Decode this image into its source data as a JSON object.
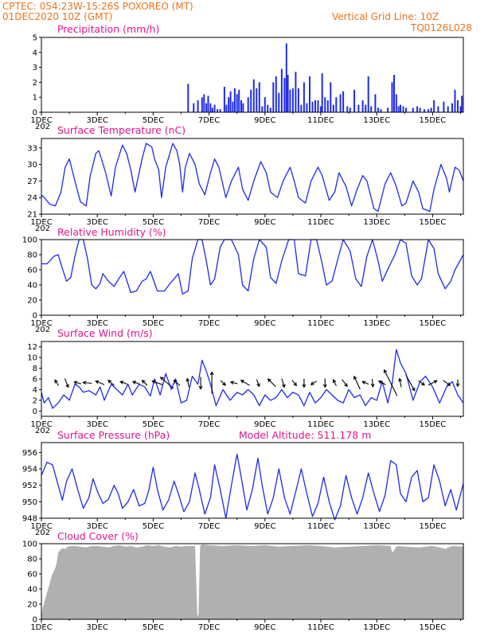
{
  "header": {
    "line1": "CPTEC:   054:23W-15:26S   POXOREO (MT)",
    "line2": "01DEC2020 10Z (GMT)",
    "grid_label": "Vertical Grid Line: 10Z",
    "code": "TQ0126L028"
  },
  "colors": {
    "header": "#e8741c",
    "title": "#e0158c",
    "series": "#1f2bea",
    "arrow": "#000000",
    "cloud": "#b0b0b0"
  },
  "x_axis": {
    "labels": [
      "1DEC",
      "3DEC",
      "5DEC",
      "7DEC",
      "9DEC",
      "11DEC",
      "13DEC",
      "15DEC"
    ],
    "label_days": [
      1,
      3,
      5,
      7,
      9,
      11,
      13,
      15
    ],
    "year_stub": "202",
    "range_days": [
      1,
      16.1
    ]
  },
  "chart_data": [
    {
      "id": "precip",
      "type": "bar",
      "title": "Precipitation (mm/h)",
      "ylim": [
        0,
        5
      ],
      "yticks": [
        0,
        1,
        2,
        3,
        4,
        5
      ],
      "x": [
        6.25,
        6.45,
        6.6,
        6.75,
        6.82,
        6.9,
        6.97,
        7.05,
        7.12,
        7.2,
        7.3,
        7.4,
        7.55,
        7.62,
        7.7,
        7.77,
        7.85,
        7.92,
        8.0,
        8.07,
        8.15,
        8.22,
        8.4,
        8.5,
        8.6,
        8.7,
        8.8,
        8.9,
        9.0,
        9.1,
        9.2,
        9.3,
        9.4,
        9.5,
        9.6,
        9.7,
        9.77,
        9.82,
        9.9,
        10.0,
        10.1,
        10.2,
        10.3,
        10.4,
        10.5,
        10.6,
        10.7,
        10.8,
        10.9,
        11.0,
        11.05,
        11.15,
        11.25,
        11.35,
        11.45,
        11.55,
        11.7,
        11.8,
        11.95,
        12.05,
        12.2,
        12.35,
        12.5,
        12.6,
        12.7,
        12.8,
        12.95,
        13.05,
        13.15,
        13.4,
        13.55,
        13.62,
        13.7,
        13.78,
        13.85,
        13.95,
        14.05,
        14.3,
        14.45,
        14.55,
        14.7,
        14.85,
        14.95,
        15.05,
        15.2,
        15.4,
        15.55,
        15.7,
        15.8,
        15.9,
        16.0,
        16.05
      ],
      "values": [
        1.9,
        0.6,
        0.8,
        1.0,
        1.2,
        0.6,
        1.1,
        0.6,
        0.3,
        0.5,
        0.2,
        0.2,
        1.7,
        0.5,
        1.0,
        1.4,
        0.7,
        1.6,
        1.2,
        1.5,
        0.8,
        0.6,
        1.0,
        1.5,
        2.2,
        1.6,
        2.0,
        0.4,
        1.0,
        0.5,
        0.3,
        2.0,
        2.4,
        1.3,
        2.9,
        2.3,
        4.6,
        2.5,
        1.5,
        1.6,
        2.7,
        1.6,
        0.5,
        2.0,
        0.6,
        2.4,
        0.7,
        0.8,
        0.8,
        0.4,
        2.6,
        1.0,
        0.8,
        2.0,
        0.5,
        1.0,
        1.2,
        1.4,
        0.4,
        0.3,
        1.5,
        0.5,
        0.8,
        0.5,
        2.4,
        0.4,
        1.2,
        0.3,
        0.2,
        0.3,
        2.0,
        2.5,
        1.2,
        0.4,
        0.5,
        0.4,
        0.3,
        0.3,
        0.4,
        0.3,
        0.2,
        0.2,
        0.3,
        0.8,
        0.4,
        0.7,
        0.4,
        0.6,
        1.5,
        0.8,
        0.4,
        1.1
      ]
    },
    {
      "id": "temp",
      "type": "line",
      "title": "Surface Temperature (nC)",
      "ylim": [
        21,
        34.7
      ],
      "yticks": [
        21,
        24,
        27,
        30,
        33
      ],
      "x": [
        1.0,
        1.1,
        1.3,
        1.5,
        1.7,
        1.85,
        2.0,
        2.2,
        2.4,
        2.6,
        2.75,
        2.95,
        3.05,
        3.15,
        3.3,
        3.5,
        3.65,
        3.9,
        4.05,
        4.2,
        4.35,
        4.6,
        4.75,
        4.95,
        5.05,
        5.2,
        5.3,
        5.45,
        5.7,
        5.85,
        5.95,
        6.05,
        6.15,
        6.3,
        6.5,
        6.65,
        6.85,
        7.05,
        7.2,
        7.35,
        7.6,
        7.8,
        8.05,
        8.2,
        8.4,
        8.6,
        8.85,
        9.05,
        9.2,
        9.45,
        9.65,
        9.9,
        10.05,
        10.2,
        10.45,
        10.65,
        10.9,
        11.05,
        11.3,
        11.5,
        11.65,
        11.9,
        12.1,
        12.3,
        12.5,
        12.65,
        12.9,
        13.05,
        13.3,
        13.5,
        13.7,
        13.9,
        14.05,
        14.3,
        14.5,
        14.65,
        14.9,
        15.05,
        15.3,
        15.5,
        15.6,
        15.8,
        15.95,
        16.1
      ],
      "values": [
        24.5,
        24.0,
        22.8,
        22.5,
        25.0,
        29.5,
        31.0,
        27.0,
        23.2,
        22.5,
        28.0,
        32.0,
        32.5,
        31.0,
        28.5,
        24.3,
        29.5,
        33.5,
        32.0,
        29.0,
        25.0,
        31.0,
        33.8,
        33.2,
        31.0,
        29.0,
        24.0,
        29.5,
        33.8,
        32.5,
        30.0,
        25.0,
        29.5,
        32.0,
        30.0,
        26.5,
        24.5,
        28.5,
        31.0,
        29.5,
        24.0,
        27.0,
        29.5,
        25.5,
        23.5,
        27.0,
        30.5,
        28.5,
        25.0,
        24.0,
        27.0,
        29.5,
        27.0,
        24.0,
        23.0,
        27.0,
        29.5,
        28.0,
        23.5,
        25.0,
        28.5,
        26.0,
        22.5,
        25.5,
        28.0,
        27.0,
        22.0,
        21.5,
        26.5,
        28.5,
        26.0,
        22.5,
        23.0,
        27.0,
        25.0,
        22.0,
        21.5,
        25.5,
        30.0,
        27.5,
        25.0,
        29.5,
        29.0,
        27.0
      ]
    },
    {
      "id": "rh",
      "type": "line",
      "title": "Relative Humidity (%)",
      "ylim": [
        0,
        100
      ],
      "yticks": [
        0,
        20,
        40,
        60,
        80,
        100
      ],
      "x": [
        1.0,
        1.2,
        1.45,
        1.6,
        1.75,
        1.9,
        2.05,
        2.2,
        2.35,
        2.5,
        2.65,
        2.8,
        2.95,
        3.1,
        3.2,
        3.4,
        3.6,
        3.8,
        3.95,
        4.2,
        4.4,
        4.6,
        4.75,
        4.9,
        5.15,
        5.4,
        5.6,
        5.75,
        5.9,
        6.05,
        6.25,
        6.4,
        6.6,
        6.75,
        6.9,
        7.05,
        7.2,
        7.4,
        7.55,
        7.8,
        8.05,
        8.2,
        8.4,
        8.6,
        8.8,
        9.05,
        9.2,
        9.4,
        9.6,
        9.85,
        10.05,
        10.2,
        10.45,
        10.65,
        10.85,
        11.05,
        11.2,
        11.4,
        11.65,
        11.8,
        12.05,
        12.25,
        12.45,
        12.65,
        12.85,
        13.05,
        13.2,
        13.45,
        13.65,
        13.85,
        14.05,
        14.25,
        14.45,
        14.6,
        14.85,
        15.05,
        15.2,
        15.45,
        15.65,
        15.8,
        16.1
      ],
      "values": [
        68,
        68,
        78,
        80,
        62,
        45,
        50,
        78,
        100,
        100,
        75,
        40,
        35,
        42,
        55,
        45,
        38,
        50,
        58,
        30,
        32,
        45,
        48,
        58,
        32,
        32,
        42,
        48,
        55,
        28,
        32,
        75,
        100,
        100,
        72,
        40,
        48,
        90,
        100,
        100,
        80,
        40,
        32,
        75,
        100,
        90,
        50,
        42,
        72,
        100,
        100,
        55,
        52,
        100,
        100,
        68,
        40,
        45,
        80,
        100,
        85,
        48,
        38,
        78,
        100,
        72,
        45,
        65,
        80,
        100,
        95,
        52,
        40,
        48,
        100,
        88,
        55,
        35,
        45,
        60,
        80
      ]
    },
    {
      "id": "wind",
      "type": "line",
      "title": "Surface Wind (m/s)",
      "ylim": [
        -1,
        13
      ],
      "yticks": [
        0,
        2,
        4,
        6,
        8,
        10,
        12
      ],
      "x": [
        1.0,
        1.1,
        1.25,
        1.4,
        1.6,
        1.8,
        2.0,
        2.2,
        2.35,
        2.5,
        2.7,
        2.95,
        3.1,
        3.25,
        3.5,
        3.7,
        3.9,
        4.1,
        4.25,
        4.5,
        4.7,
        4.9,
        5.05,
        5.25,
        5.45,
        5.65,
        5.8,
        6.0,
        6.2,
        6.4,
        6.6,
        6.75,
        6.9,
        7.05,
        7.25,
        7.5,
        7.75,
        8.0,
        8.2,
        8.4,
        8.6,
        8.8,
        9.0,
        9.2,
        9.4,
        9.6,
        9.8,
        10.0,
        10.2,
        10.4,
        10.6,
        10.8,
        11.0,
        11.2,
        11.4,
        11.6,
        11.8,
        12.0,
        12.2,
        12.4,
        12.6,
        12.8,
        13.0,
        13.2,
        13.4,
        13.55,
        13.7,
        13.85,
        14.05,
        14.3,
        14.55,
        14.75,
        15.0,
        15.25,
        15.5,
        15.7,
        15.9,
        16.1
      ],
      "values": [
        3.5,
        1.5,
        2.5,
        0.5,
        1.5,
        3.0,
        2.0,
        5.0,
        4.5,
        3.5,
        3.8,
        3.0,
        4.5,
        2.0,
        5.0,
        4.0,
        3.0,
        5.0,
        3.0,
        5.0,
        4.5,
        2.8,
        6.0,
        3.0,
        7.0,
        4.0,
        6.0,
        1.5,
        2.0,
        6.5,
        5.0,
        9.5,
        7.5,
        5.0,
        1.0,
        4.0,
        2.0,
        3.5,
        3.0,
        4.0,
        3.0,
        1.0,
        3.0,
        2.0,
        2.5,
        4.0,
        2.5,
        3.5,
        3.0,
        1.0,
        3.5,
        1.5,
        2.5,
        4.0,
        3.0,
        2.0,
        1.5,
        4.0,
        2.5,
        3.0,
        1.0,
        2.5,
        2.0,
        5.5,
        1.5,
        5.0,
        11.5,
        9.0,
        7.0,
        2.0,
        5.5,
        6.5,
        4.5,
        1.5,
        4.5,
        5.5,
        3.0,
        1.5
      ],
      "arrows_x": [
        1.55,
        1.9,
        2.3,
        2.65,
        3.1,
        3.5,
        3.95,
        4.4,
        4.7,
        5.15,
        5.5,
        5.85,
        6.25,
        6.7,
        7.1,
        7.5,
        7.9,
        8.3,
        8.75,
        9.25,
        9.65,
        10.05,
        10.4,
        10.75,
        11.15,
        11.5,
        11.85,
        12.3,
        12.6,
        12.85,
        13.2,
        13.5,
        13.85,
        14.2,
        14.6,
        15.0,
        15.5,
        15.9
      ],
      "arrows_u": [
        -0.4,
        0.4,
        -0.8,
        -1.0,
        -1.0,
        -0.7,
        -0.8,
        -0.8,
        -0.6,
        -1.2,
        -1.5,
        -0.7,
        -0.2,
        0.0,
        0.0,
        0.5,
        -0.8,
        -1.0,
        0.3,
        -0.9,
        0.3,
        0.4,
        0.0,
        -0.5,
        0.0,
        -0.3,
        0.6,
        -0.7,
        -0.5,
        0.1,
        -0.8,
        -1.5,
        -0.2,
        1.0,
        0.7,
        1.0,
        0.8,
        0.0
      ],
      "arrows_v": [
        0.6,
        -1.0,
        0.2,
        0.1,
        0.4,
        0.6,
        0.3,
        0.3,
        0.6,
        0.4,
        1.3,
        0.6,
        1.0,
        -1.4,
        2.5,
        -0.5,
        0.2,
        0.6,
        -0.8,
        0.9,
        -1.0,
        -0.5,
        -1.0,
        -0.3,
        -1.0,
        0.6,
        -0.8,
        1.5,
        0.2,
        -0.9,
        0.4,
        3.0,
        1.0,
        -1.8,
        -0.5,
        0.5,
        -0.6,
        -0.8
      ]
    },
    {
      "id": "pressure",
      "type": "line",
      "title": "Surface Pressure (hPa)",
      "annotation": "Model Altitude: 511.178  m",
      "ylim": [
        948,
        957.2
      ],
      "yticks": [
        948,
        950,
        952,
        954,
        956
      ],
      "x": [
        1.0,
        1.2,
        1.4,
        1.6,
        1.75,
        1.9,
        2.1,
        2.3,
        2.5,
        2.7,
        2.85,
        3.0,
        3.2,
        3.4,
        3.6,
        3.75,
        3.9,
        4.1,
        4.3,
        4.5,
        4.7,
        4.85,
        5.0,
        5.15,
        5.35,
        5.55,
        5.75,
        5.9,
        6.1,
        6.3,
        6.5,
        6.65,
        6.85,
        7.05,
        7.2,
        7.4,
        7.6,
        7.8,
        8.0,
        8.15,
        8.35,
        8.55,
        8.75,
        8.9,
        9.1,
        9.3,
        9.5,
        9.7,
        9.9,
        10.1,
        10.3,
        10.5,
        10.7,
        10.9,
        11.1,
        11.3,
        11.5,
        11.7,
        11.9,
        12.1,
        12.3,
        12.5,
        12.7,
        12.9,
        13.1,
        13.3,
        13.5,
        13.7,
        13.85,
        14.05,
        14.25,
        14.45,
        14.65,
        14.85,
        15.05,
        15.25,
        15.45,
        15.65,
        15.85,
        16.1
      ],
      "values": [
        953.2,
        954.8,
        954.5,
        952.0,
        950.2,
        952.5,
        954.0,
        951.5,
        949.2,
        950.5,
        952.8,
        951.3,
        949.8,
        950.3,
        952.0,
        951.0,
        949.2,
        950.0,
        951.5,
        949.5,
        949.8,
        951.5,
        954.2,
        951.5,
        949.0,
        950.2,
        952.5,
        951.0,
        948.8,
        950.0,
        953.5,
        951.5,
        948.5,
        950.5,
        954.5,
        951.5,
        948.0,
        952.0,
        955.8,
        953.0,
        949.0,
        951.5,
        955.3,
        952.0,
        948.5,
        950.5,
        954.0,
        950.5,
        948.5,
        951.2,
        954.0,
        951.0,
        948.2,
        949.8,
        953.0,
        950.0,
        947.8,
        949.5,
        953.2,
        950.5,
        948.5,
        950.5,
        953.5,
        951.0,
        948.8,
        950.8,
        955.0,
        954.5,
        951.0,
        950.0,
        953.0,
        953.8,
        950.0,
        950.5,
        954.5,
        952.5,
        949.5,
        951.5,
        949.0,
        952.2
      ]
    },
    {
      "id": "cloud",
      "type": "area",
      "title": "Cloud Cover (%)",
      "ylim": [
        0,
        100
      ],
      "yticks": [
        0,
        20,
        40,
        60,
        80,
        100
      ],
      "x": [
        1.0,
        1.05,
        1.12,
        1.2,
        1.28,
        1.35,
        1.42,
        1.5,
        1.55,
        1.6,
        1.68,
        1.75,
        1.85,
        1.95,
        2.05,
        2.2,
        2.4,
        2.6,
        2.8,
        3.0,
        3.2,
        3.4,
        3.6,
        3.8,
        4.0,
        4.2,
        4.4,
        4.6,
        4.8,
        5.0,
        5.2,
        5.4,
        5.6,
        5.8,
        6.0,
        6.2,
        6.5,
        6.58,
        6.62,
        6.68,
        6.75,
        7.0,
        7.5,
        8.0,
        8.5,
        9.0,
        9.5,
        10.0,
        10.5,
        11.0,
        11.5,
        12.0,
        12.5,
        13.0,
        13.5,
        13.55,
        13.6,
        13.7,
        13.8,
        14.0,
        14.5,
        15.0,
        15.5,
        15.55,
        15.6,
        15.7,
        16.1
      ],
      "values": [
        5,
        15,
        25,
        35,
        45,
        55,
        62,
        68,
        75,
        88,
        92,
        94,
        93,
        96,
        97,
        97,
        96,
        95,
        97,
        97,
        96,
        95,
        97,
        98,
        96,
        97,
        95,
        96,
        98,
        97,
        98,
        96,
        95,
        97,
        96,
        97,
        97,
        5,
        5,
        97,
        99,
        98,
        97,
        98,
        97,
        98,
        96,
        97,
        98,
        97,
        95,
        96,
        97,
        98,
        97,
        88,
        90,
        96,
        97,
        96,
        95,
        97,
        93,
        96,
        95,
        97,
        96
      ]
    }
  ]
}
